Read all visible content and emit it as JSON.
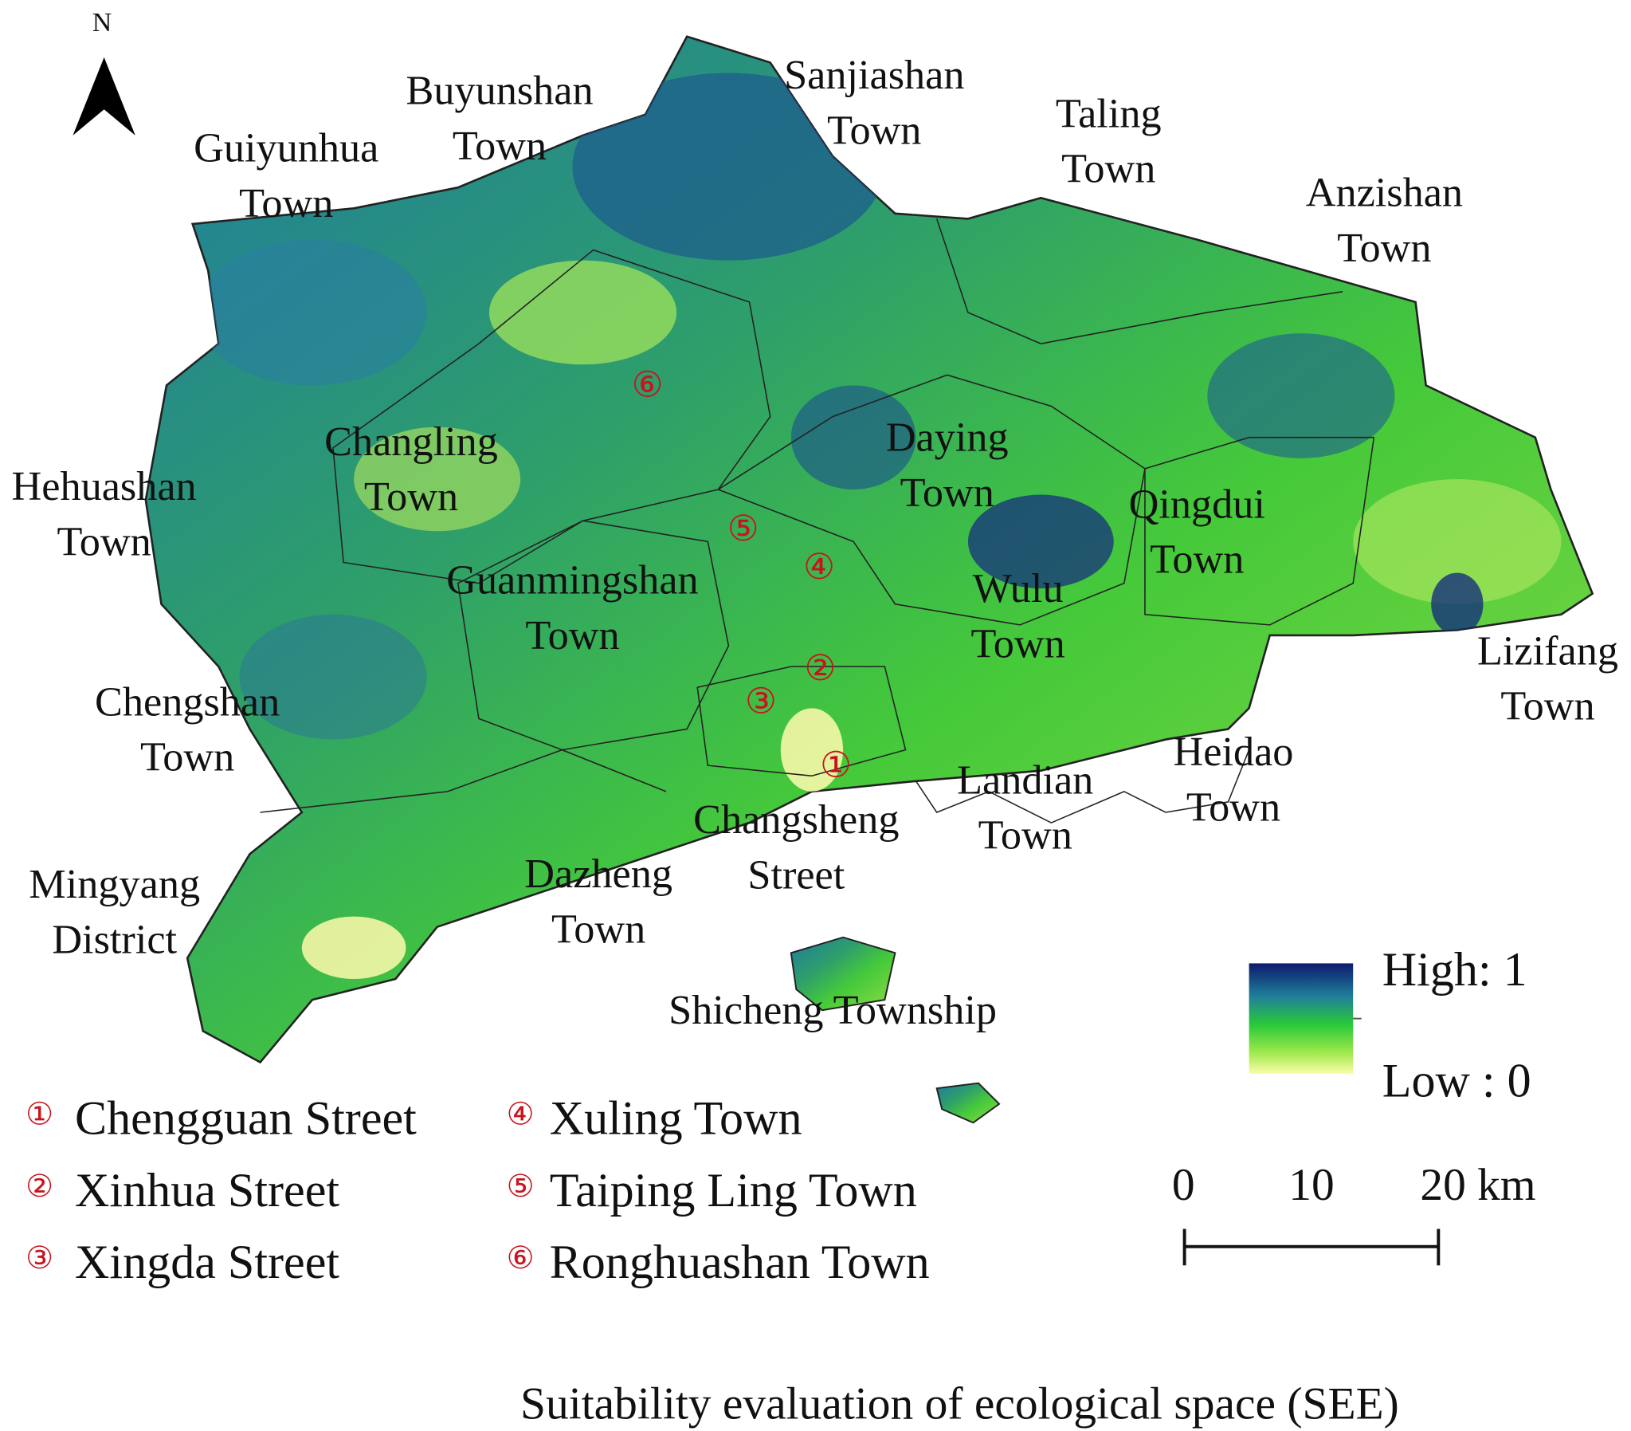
{
  "north_arrow": "N",
  "towns": [
    {
      "lines": [
        "Guiyunhua",
        "Town"
      ]
    },
    {
      "lines": [
        "Buyunshan",
        "Town"
      ]
    },
    {
      "lines": [
        "Sanjiashan",
        "Town"
      ]
    },
    {
      "lines": [
        "Taling",
        "Town"
      ]
    },
    {
      "lines": [
        "Anzishan",
        "Town"
      ]
    },
    {
      "lines": [
        "Changling",
        "Town"
      ]
    },
    {
      "lines": [
        "Hehuashan",
        "Town"
      ]
    },
    {
      "lines": [
        "Daying",
        "Town"
      ]
    },
    {
      "lines": [
        "Qingdui",
        "Town"
      ]
    },
    {
      "lines": [
        "Guanmingshan",
        "Town"
      ]
    },
    {
      "lines": [
        "Wulu",
        "Town"
      ]
    },
    {
      "lines": [
        "Chengshan",
        "Town"
      ]
    },
    {
      "lines": [
        "Lizifang",
        "Town"
      ]
    },
    {
      "lines": [
        "Heidao",
        "Town"
      ]
    },
    {
      "lines": [
        "Landian",
        "Town"
      ]
    },
    {
      "lines": [
        "Changsheng",
        "Street"
      ]
    },
    {
      "lines": [
        "Mingyang",
        "District"
      ]
    },
    {
      "lines": [
        "Dazheng",
        "Town"
      ]
    },
    {
      "lines": [
        "Shicheng Township"
      ]
    }
  ],
  "legend": [
    {
      "marker": "①",
      "label": "Chengguan Street"
    },
    {
      "marker": "②",
      "label": "Xinhua Street"
    },
    {
      "marker": "③",
      "label": "Xingda Street"
    },
    {
      "marker": "④",
      "label": "Xuling Town"
    },
    {
      "marker": "⑤",
      "label": "Taiping Ling Town"
    },
    {
      "marker": "⑥",
      "label": "Ronghuashan Town"
    }
  ],
  "color_scale": {
    "high": "High: 1",
    "low": "Low : 0"
  },
  "scale_bar": {
    "labels": [
      "0",
      "10",
      "20 km"
    ]
  },
  "title": "Suitability evaluation of ecological space (SEE)"
}
